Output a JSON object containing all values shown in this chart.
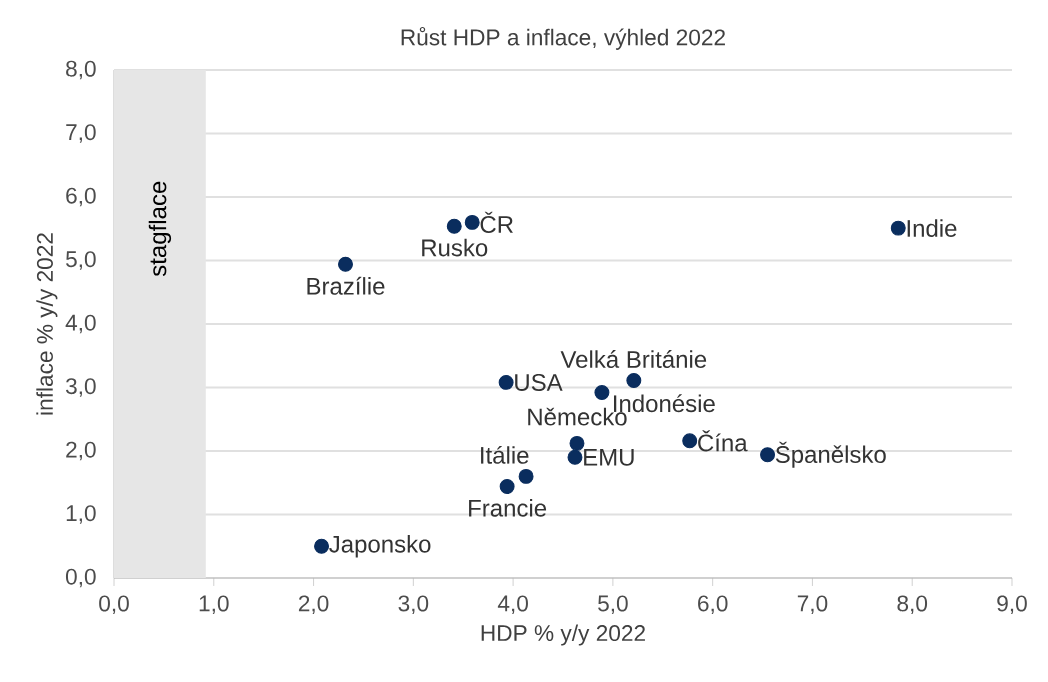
{
  "chart_data": {
    "type": "scatter",
    "title": "Růst HDP a inflace, výhled  2022",
    "xlabel": "HDP % y/y 2022",
    "ylabel": "inflace % y/y 2022",
    "x": [
      7.86,
      3.59,
      3.41,
      2.32,
      3.93,
      5.21,
      4.89,
      4.64,
      4.62,
      5.77,
      6.55,
      4.13,
      3.94,
      2.08
    ],
    "values": [
      5.51,
      5.6,
      5.54,
      4.94,
      3.08,
      3.11,
      2.92,
      2.12,
      1.9,
      2.16,
      1.94,
      1.6,
      1.44,
      0.5
    ],
    "color": "#0a2d5e",
    "marker": "circle",
    "annotations": [
      {
        "text": "Indie",
        "x": 7.86,
        "y": 5.51
      },
      {
        "text": "ČR",
        "x": 3.59,
        "y": 5.6
      },
      {
        "text": "Rusko",
        "x": 3.41,
        "y": 5.54
      },
      {
        "text": "Brazílie",
        "x": 2.32,
        "y": 4.94
      },
      {
        "text": "USA",
        "x": 3.93,
        "y": 3.08
      },
      {
        "text": "Velká Británie",
        "x": 5.21,
        "y": 3.11
      },
      {
        "text": "Indonésie",
        "x": 4.89,
        "y": 2.92
      },
      {
        "text": "Německo",
        "x": 4.64,
        "y": 2.12
      },
      {
        "text": "EMU",
        "x": 4.62,
        "y": 1.9
      },
      {
        "text": "Čína",
        "x": 5.77,
        "y": 2.16
      },
      {
        "text": "Španělsko",
        "x": 6.55,
        "y": 1.94
      },
      {
        "text": "Itálie",
        "x": 4.13,
        "y": 1.6
      },
      {
        "text": "Francie",
        "x": 3.94,
        "y": 1.44
      },
      {
        "text": "Japonsko",
        "x": 2.08,
        "y": 0.5
      }
    ],
    "bands": [
      {
        "axis": "x",
        "from": 0,
        "to": 0.92,
        "label": "stagflace",
        "color": "#e6e6e6"
      }
    ],
    "xlim": [
      0,
      9
    ],
    "ylim": [
      0,
      8
    ],
    "xticks": [
      {
        "value": 0,
        "label": "0,0"
      },
      {
        "value": 1,
        "label": "1,0"
      },
      {
        "value": 2,
        "label": "2,0"
      },
      {
        "value": 3,
        "label": "3,0"
      },
      {
        "value": 4,
        "label": "4,0"
      },
      {
        "value": 5,
        "label": "5,0"
      },
      {
        "value": 6,
        "label": "6,0"
      },
      {
        "value": 7,
        "label": "7,0"
      },
      {
        "value": 8,
        "label": "8,0"
      },
      {
        "value": 9,
        "label": "9,0"
      }
    ],
    "yticks": [
      {
        "value": 0,
        "label": "0,0"
      },
      {
        "value": 1,
        "label": "1,0"
      },
      {
        "value": 2,
        "label": "2,0"
      },
      {
        "value": 3,
        "label": "3,0"
      },
      {
        "value": 4,
        "label": "4,0"
      },
      {
        "value": 5,
        "label": "5,0"
      },
      {
        "value": 6,
        "label": "6,0"
      },
      {
        "value": 7,
        "label": "7,0"
      },
      {
        "value": 8,
        "label": "8,0"
      }
    ],
    "grid": "y"
  }
}
